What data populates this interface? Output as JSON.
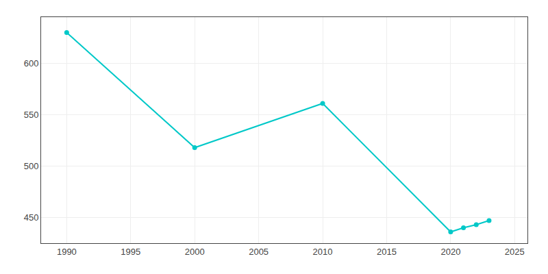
{
  "chart_data": {
    "type": "line",
    "x": [
      1990,
      2000,
      2010,
      2020,
      2021,
      2022,
      2023
    ],
    "values": [
      630,
      518,
      561,
      436,
      440,
      443,
      447
    ],
    "color": "#00c8c8",
    "marker": "circle",
    "xlim": [
      1988,
      2026
    ],
    "ylim": [
      425,
      645
    ],
    "xticks": [
      1990,
      1995,
      2000,
      2005,
      2010,
      2015,
      2020,
      2025
    ],
    "yticks": [
      450,
      500,
      550,
      600
    ],
    "grid": true
  }
}
